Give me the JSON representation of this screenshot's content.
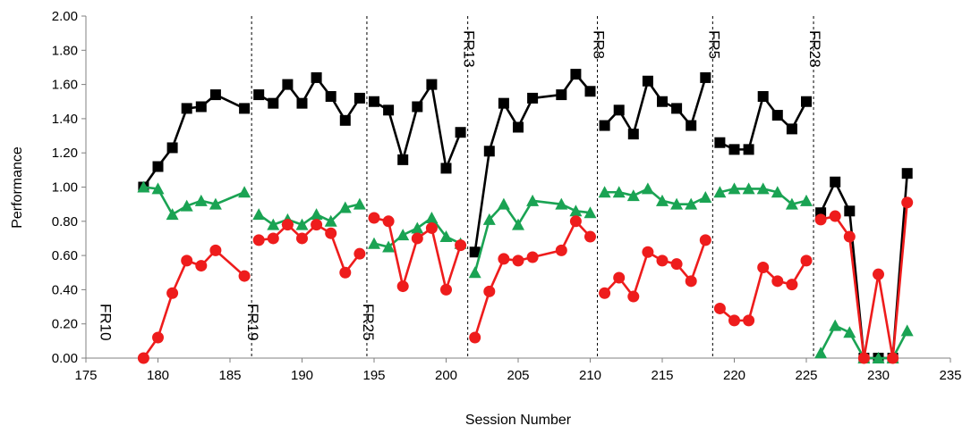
{
  "chart_data": {
    "type": "line",
    "title": "",
    "xlabel": "Session Number",
    "ylabel": "Performance",
    "xlim": [
      175,
      235
    ],
    "ylim": [
      0,
      2
    ],
    "xticks": [
      175,
      180,
      185,
      190,
      195,
      200,
      205,
      210,
      215,
      220,
      225,
      230,
      235
    ],
    "yticks": [
      "0.00",
      "0.20",
      "0.40",
      "0.60",
      "0.80",
      "1.00",
      "1.20",
      "1.40",
      "1.60",
      "1.80",
      "2.00"
    ],
    "grid": false,
    "legend": "none",
    "phases": [
      {
        "label": "FR10",
        "x": 179,
        "line_x": null,
        "label_pos": "bottom"
      },
      {
        "label": "FR19",
        "x": 186.5,
        "line_x": 186.5,
        "label_pos": "bottom"
      },
      {
        "label": "FR25",
        "x": 194.5,
        "line_x": 194.5,
        "label_pos": "bottom"
      },
      {
        "label": "FR13",
        "x": 201.5,
        "line_x": 201.5,
        "label_pos": "top"
      },
      {
        "label": "FR8",
        "x": 210.5,
        "line_x": 210.5,
        "label_pos": "top"
      },
      {
        "label": "FR5",
        "x": 218.5,
        "line_x": 218.5,
        "label_pos": "top"
      },
      {
        "label": "FR28",
        "x": 225.5,
        "line_x": 225.5,
        "label_pos": "top"
      }
    ],
    "series": [
      {
        "marker": "square",
        "color": "#000000",
        "points": [
          [
            179,
            1.0
          ],
          [
            180,
            1.12
          ],
          [
            181,
            1.23
          ],
          [
            182,
            1.46
          ],
          [
            183,
            1.47
          ],
          [
            184,
            1.54
          ],
          [
            186,
            1.46
          ],
          [
            187,
            1.54
          ],
          [
            188,
            1.49
          ],
          [
            189,
            1.6
          ],
          [
            190,
            1.49
          ],
          [
            191,
            1.64
          ],
          [
            192,
            1.53
          ],
          [
            193,
            1.39
          ],
          [
            194,
            1.52
          ],
          [
            195,
            1.5
          ],
          [
            196,
            1.45
          ],
          [
            197,
            1.16
          ],
          [
            198,
            1.47
          ],
          [
            199,
            1.6
          ],
          [
            200,
            1.11
          ],
          [
            201,
            1.32
          ],
          [
            202,
            0.62
          ],
          [
            203,
            1.21
          ],
          [
            204,
            1.49
          ],
          [
            205,
            1.35
          ],
          [
            206,
            1.52
          ],
          [
            208,
            1.54
          ],
          [
            209,
            1.66
          ],
          [
            210,
            1.56
          ],
          [
            211,
            1.36
          ],
          [
            212,
            1.45
          ],
          [
            213,
            1.31
          ],
          [
            214,
            1.62
          ],
          [
            215,
            1.5
          ],
          [
            216,
            1.46
          ],
          [
            217,
            1.36
          ],
          [
            218,
            1.64
          ],
          [
            219,
            1.26
          ],
          [
            220,
            1.22
          ],
          [
            221,
            1.22
          ],
          [
            222,
            1.53
          ],
          [
            223,
            1.42
          ],
          [
            224,
            1.34
          ],
          [
            225,
            1.5
          ],
          [
            226,
            0.85
          ],
          [
            227,
            1.03
          ],
          [
            228,
            0.86
          ],
          [
            229,
            0.0
          ],
          [
            230,
            0.0
          ],
          [
            231,
            0.0
          ],
          [
            232,
            1.08
          ]
        ]
      },
      {
        "marker": "triangle",
        "color": "#1aa353",
        "points": [
          [
            179,
            1.0
          ],
          [
            180,
            0.99
          ],
          [
            181,
            0.84
          ],
          [
            182,
            0.89
          ],
          [
            183,
            0.92
          ],
          [
            184,
            0.9
          ],
          [
            186,
            0.97
          ],
          [
            187,
            0.84
          ],
          [
            188,
            0.78
          ],
          [
            189,
            0.81
          ],
          [
            190,
            0.78
          ],
          [
            191,
            0.84
          ],
          [
            192,
            0.8
          ],
          [
            193,
            0.88
          ],
          [
            194,
            0.9
          ],
          [
            195,
            0.67
          ],
          [
            196,
            0.65
          ],
          [
            197,
            0.72
          ],
          [
            198,
            0.76
          ],
          [
            199,
            0.82
          ],
          [
            200,
            0.71
          ],
          [
            201,
            0.67
          ],
          [
            202,
            0.5
          ],
          [
            203,
            0.81
          ],
          [
            204,
            0.9
          ],
          [
            205,
            0.78
          ],
          [
            206,
            0.92
          ],
          [
            208,
            0.9
          ],
          [
            209,
            0.86
          ],
          [
            210,
            0.85
          ],
          [
            211,
            0.97
          ],
          [
            212,
            0.97
          ],
          [
            213,
            0.95
          ],
          [
            214,
            0.99
          ],
          [
            215,
            0.92
          ],
          [
            216,
            0.9
          ],
          [
            217,
            0.9
          ],
          [
            218,
            0.94
          ],
          [
            219,
            0.97
          ],
          [
            220,
            0.99
          ],
          [
            221,
            0.99
          ],
          [
            222,
            0.99
          ],
          [
            223,
            0.97
          ],
          [
            224,
            0.9
          ],
          [
            225,
            0.92
          ],
          [
            226,
            0.03
          ],
          [
            227,
            0.19
          ],
          [
            228,
            0.15
          ],
          [
            229,
            0.0
          ],
          [
            230,
            0.0
          ],
          [
            231,
            0.0
          ],
          [
            232,
            0.16
          ]
        ]
      },
      {
        "marker": "circle",
        "color": "#ee1c1c",
        "points": [
          [
            179,
            0.0
          ],
          [
            180,
            0.12
          ],
          [
            181,
            0.38
          ],
          [
            182,
            0.57
          ],
          [
            183,
            0.54
          ],
          [
            184,
            0.63
          ],
          [
            186,
            0.48
          ],
          [
            187,
            0.69
          ],
          [
            188,
            0.7
          ],
          [
            189,
            0.78
          ],
          [
            190,
            0.7
          ],
          [
            191,
            0.78
          ],
          [
            192,
            0.73
          ],
          [
            193,
            0.5
          ],
          [
            194,
            0.61
          ],
          [
            195,
            0.82
          ],
          [
            196,
            0.8
          ],
          [
            197,
            0.42
          ],
          [
            198,
            0.7
          ],
          [
            199,
            0.76
          ],
          [
            200,
            0.4
          ],
          [
            201,
            0.66
          ],
          [
            202,
            0.12
          ],
          [
            203,
            0.39
          ],
          [
            204,
            0.58
          ],
          [
            205,
            0.57
          ],
          [
            206,
            0.59
          ],
          [
            208,
            0.63
          ],
          [
            209,
            0.8
          ],
          [
            210,
            0.71
          ],
          [
            211,
            0.38
          ],
          [
            212,
            0.47
          ],
          [
            213,
            0.36
          ],
          [
            214,
            0.62
          ],
          [
            215,
            0.57
          ],
          [
            216,
            0.55
          ],
          [
            217,
            0.45
          ],
          [
            218,
            0.69
          ],
          [
            219,
            0.29
          ],
          [
            220,
            0.22
          ],
          [
            221,
            0.22
          ],
          [
            222,
            0.53
          ],
          [
            223,
            0.45
          ],
          [
            224,
            0.43
          ],
          [
            225,
            0.57
          ],
          [
            226,
            0.81
          ],
          [
            227,
            0.83
          ],
          [
            228,
            0.71
          ],
          [
            229,
            0.0
          ],
          [
            230,
            0.49
          ],
          [
            231,
            0.0
          ],
          [
            232,
            0.91
          ]
        ]
      }
    ]
  }
}
